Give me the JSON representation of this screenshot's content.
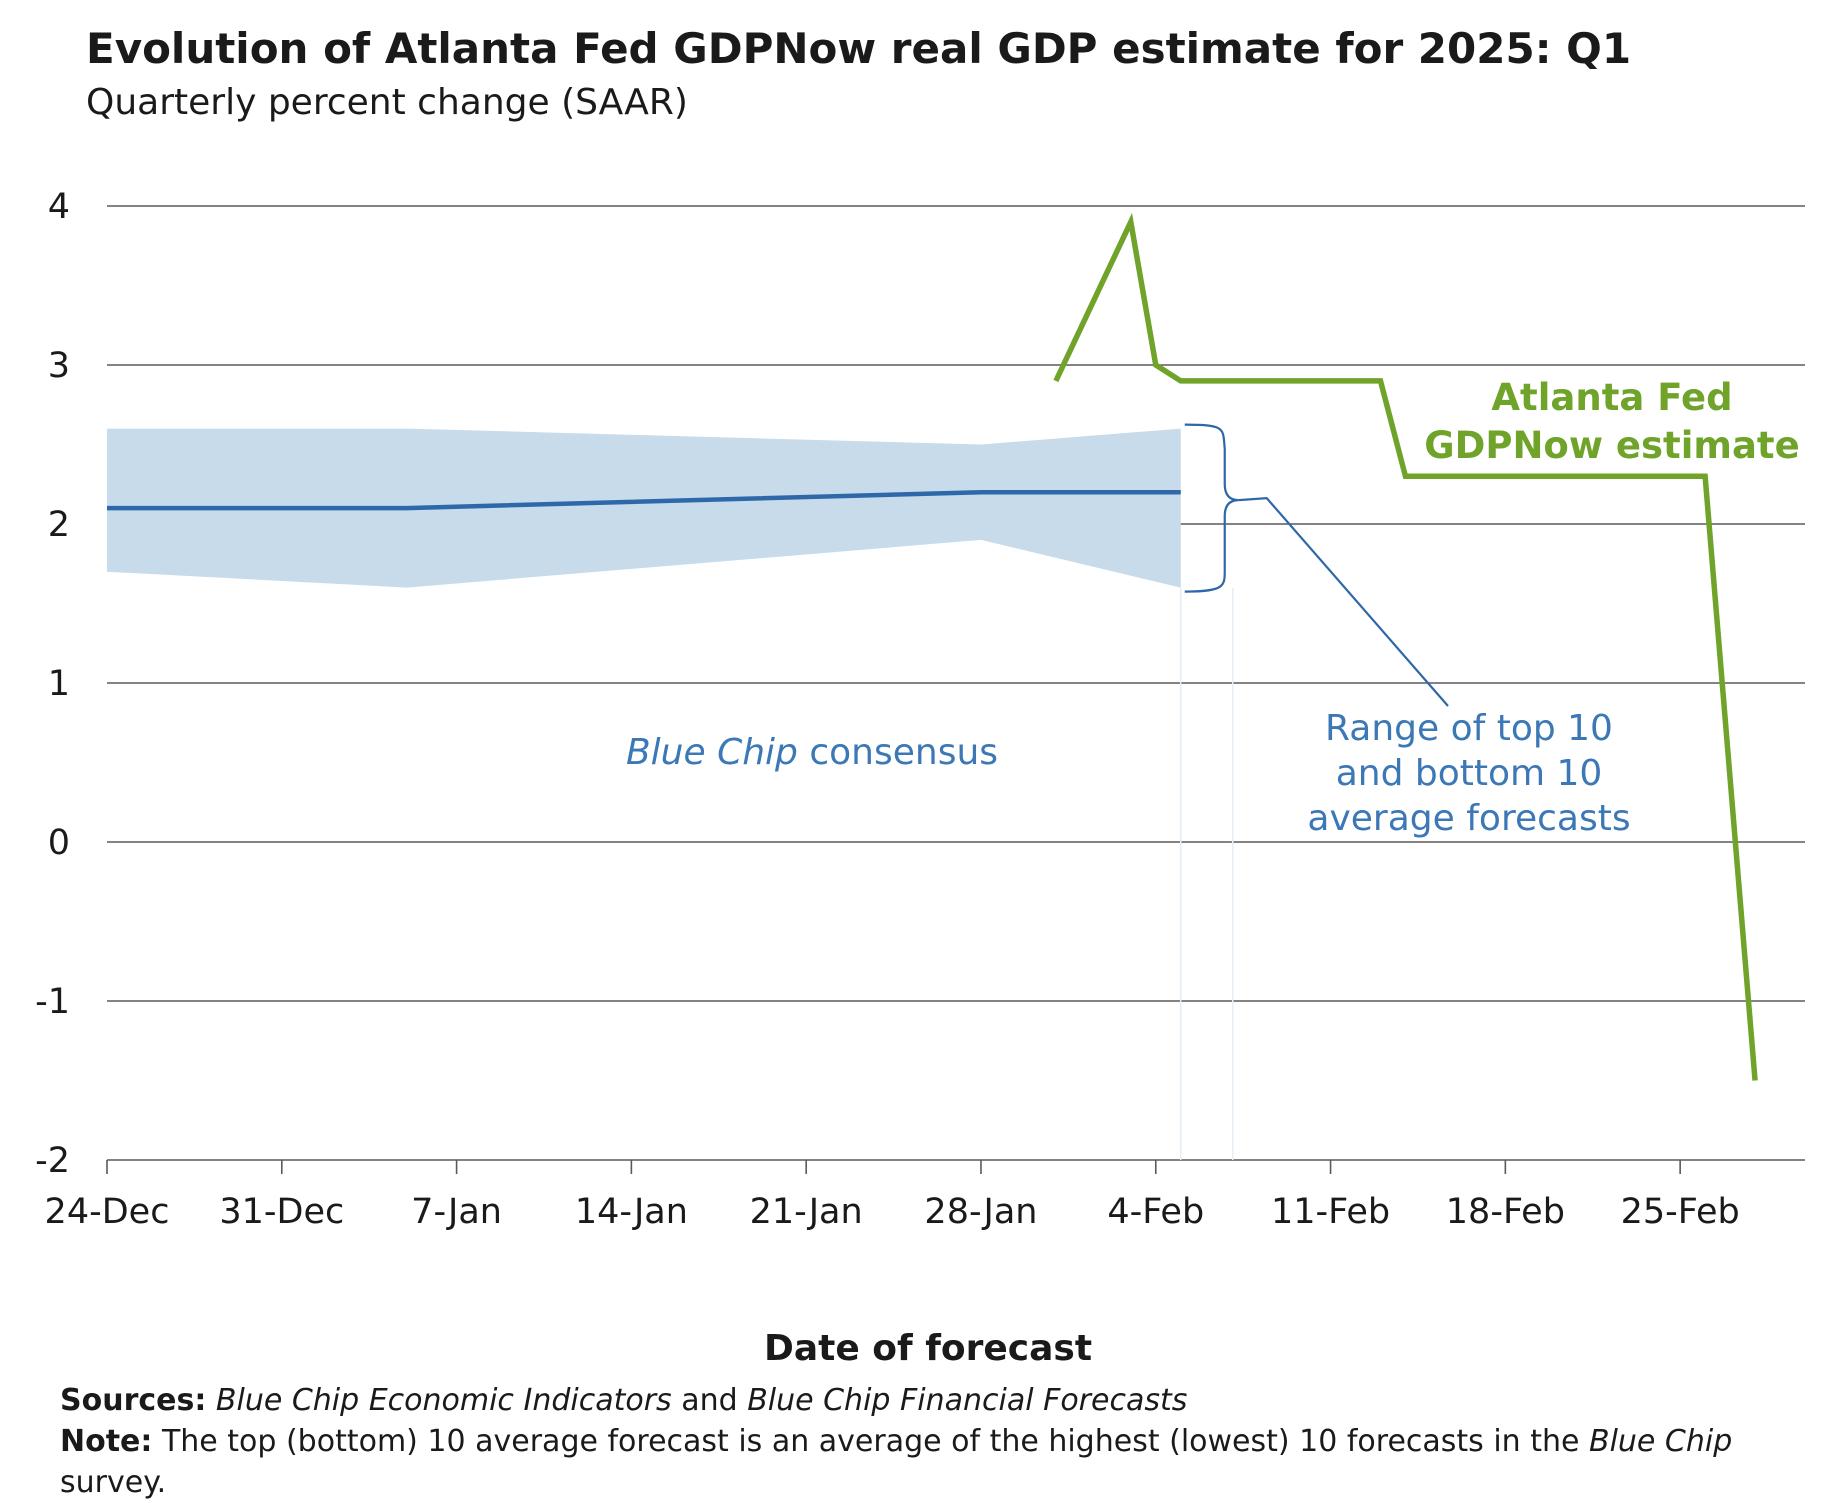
{
  "chart_data": {
    "type": "line",
    "title": "Evolution of Atlanta Fed GDPNow real GDP estimate for 2025: Q1",
    "subtitle": "Quarterly percent change (SAAR)",
    "xlabel": "Date of forecast",
    "ylabel": "",
    "ylim": [
      -2,
      4
    ],
    "yticks": [
      4,
      3,
      2,
      1,
      0,
      -1,
      -2
    ],
    "x_axis": {
      "type": "date",
      "range": [
        "2024-12-24",
        "2025-03-02"
      ],
      "tick_dates": [
        "2024-12-24",
        "2024-12-31",
        "2025-01-07",
        "2025-01-14",
        "2025-01-21",
        "2025-01-28",
        "2025-02-04",
        "2025-02-11",
        "2025-02-18",
        "2025-02-25"
      ],
      "tick_labels": [
        "24-Dec",
        "31-Dec",
        "7-Jan",
        "14-Jan",
        "21-Jan",
        "28-Jan",
        "4-Feb",
        "11-Feb",
        "18-Feb",
        "25-Feb"
      ]
    },
    "grid": true,
    "colors": {
      "gdpnow": "#6fa32a",
      "consensus": "#2f68a8",
      "range_band": "#c7dbea",
      "annotation": "#3b78b5",
      "grid": "#5a5a5a"
    },
    "series": [
      {
        "name": "Atlanta Fed GDPNow estimate",
        "x": [
          "2025-01-31",
          "2025-02-03",
          "2025-02-04",
          "2025-02-05",
          "2025-02-13",
          "2025-02-14",
          "2025-02-26",
          "2025-02-28"
        ],
        "values": [
          2.9,
          3.9,
          3.0,
          2.9,
          2.9,
          2.3,
          2.3,
          -1.5
        ]
      },
      {
        "name": "Blue Chip consensus",
        "x": [
          "2024-12-24",
          "2025-01-05",
          "2025-01-28",
          "2025-02-05"
        ],
        "values": [
          2.1,
          2.1,
          2.2,
          2.2
        ]
      },
      {
        "name": "Range of top 10 and bottom 10 average forecasts",
        "x": [
          "2024-12-24",
          "2025-01-05",
          "2025-01-28",
          "2025-02-05"
        ],
        "upper": [
          2.6,
          2.6,
          2.5,
          2.6
        ],
        "lower": [
          1.7,
          1.6,
          1.9,
          1.6
        ]
      }
    ],
    "annotations": {
      "gdpnow_line1": "Atlanta Fed",
      "gdpnow_line2": "GDPNow estimate",
      "consensus_italic": "Blue Chip",
      "consensus_rest": " consensus",
      "range_line1": "Range of top 10",
      "range_line2": "and bottom 10",
      "range_line3": "average forecasts"
    }
  },
  "footer": {
    "sources_label": "Sources:",
    "sources_italic1": "Blue Chip Economic Indicators",
    "sources_and": " and ",
    "sources_italic2": "Blue Chip Financial Forecasts",
    "note_label": "Note:",
    "note_text": " The top (bottom) 10 average forecast is an average of the highest (lowest) 10 forecasts in the ",
    "note_italic": "Blue Chip",
    "note_end": " survey."
  }
}
